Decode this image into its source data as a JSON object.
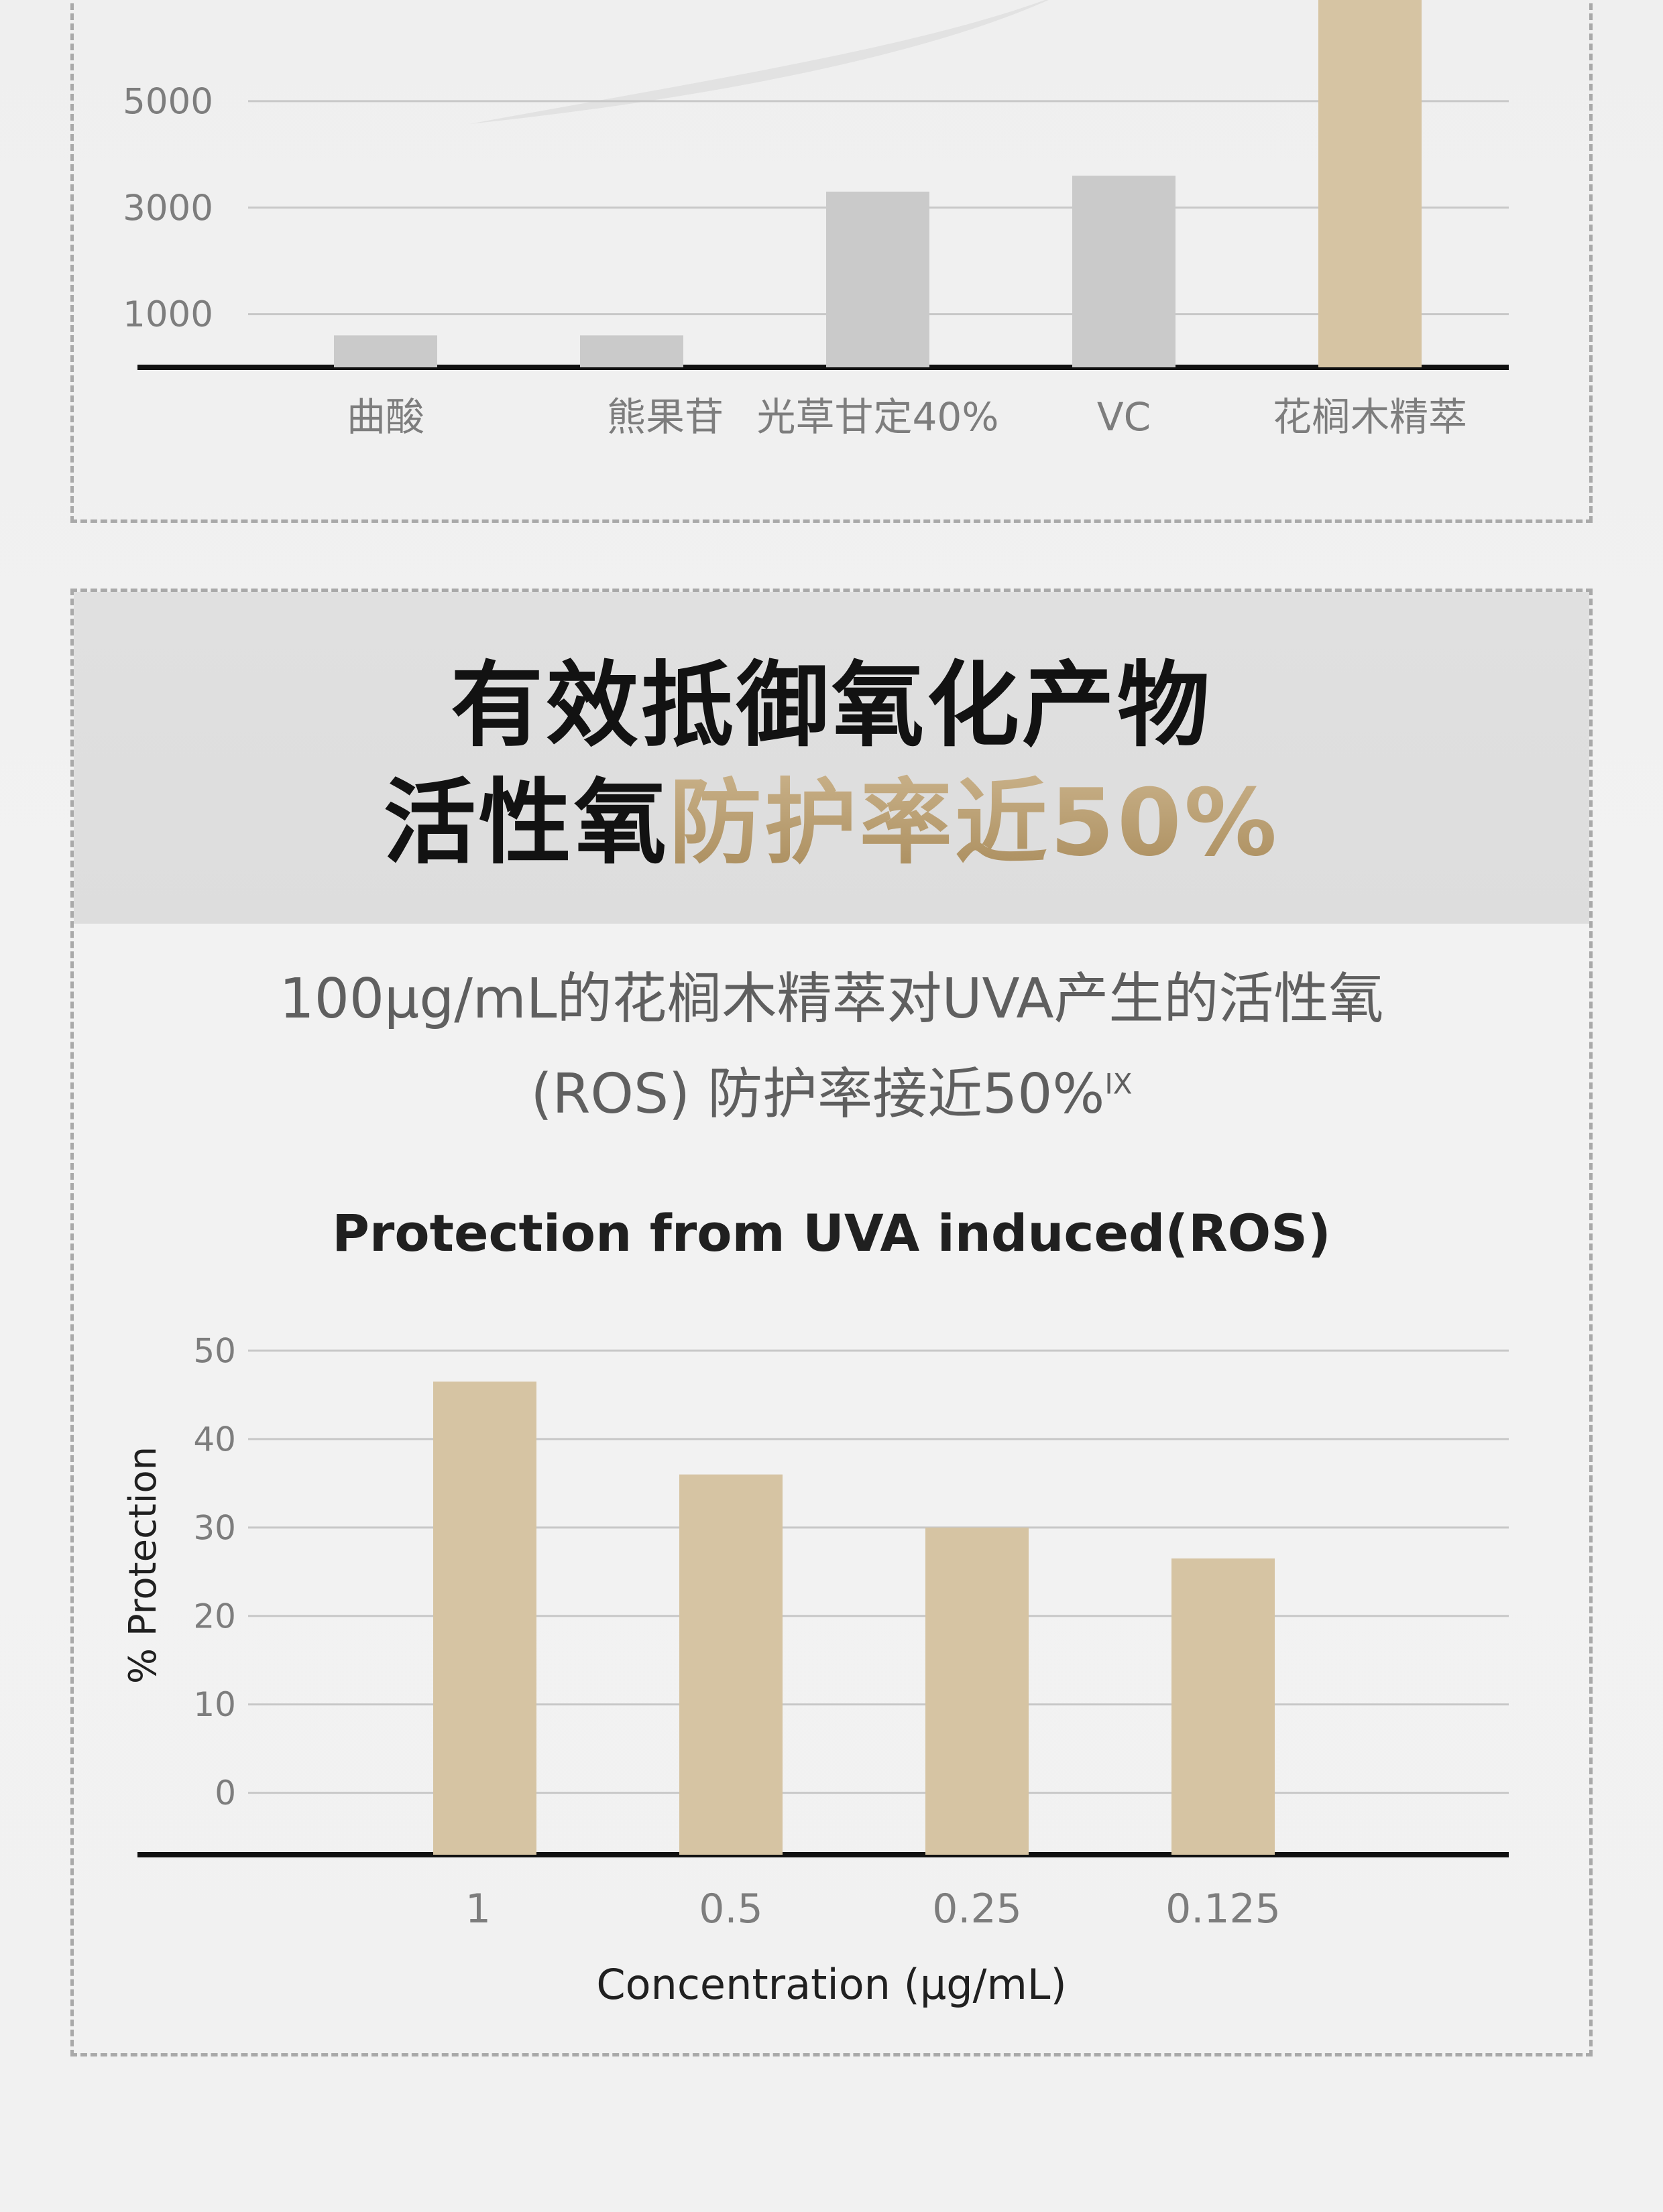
{
  "top_section": {},
  "bottom_section": {
    "headline_line_1": "有效抵御氧化产物",
    "headline_line_2_dark": "活性氧",
    "headline_line_2_gold": "防护率近50%",
    "subtext_line_1": "100μg/mL的花榈木精萃对UVA产生的活性氧",
    "subtext_line_2": "(ROS) 防护率接近50%",
    "subtext_superscript": "IX"
  },
  "chart_data": [
    {
      "type": "bar",
      "title": "",
      "xlabel": "",
      "ylabel": "",
      "categories": [
        "曲酸",
        "熊果苷",
        "光草甘定40%",
        "VC",
        "花榈木精萃"
      ],
      "values": [
        600,
        600,
        3300,
        3600,
        7000
      ],
      "colors": [
        "#cacaca",
        "#cacaca",
        "#cacaca",
        "#cacaca",
        "#d6c4a3"
      ],
      "yticks": [
        1000,
        3000,
        5000
      ],
      "ylim": [
        0,
        7000
      ],
      "grid": true,
      "legend": "none"
    },
    {
      "type": "bar",
      "title": "Protection from UVA induced(ROS)",
      "xlabel": "Concentration  (μg/mL)",
      "ylabel": "% Protection",
      "categories": [
        "1",
        "0.5",
        "0.25",
        "0.125"
      ],
      "values": [
        46.5,
        36,
        30,
        26.5
      ],
      "colors": [
        "#d6c4a3",
        "#d6c4a3",
        "#d6c4a3",
        "#d6c4a3"
      ],
      "yticks": [
        0,
        10,
        20,
        30,
        40,
        50
      ],
      "ylim": [
        -7,
        50
      ],
      "grid": true,
      "legend": "none"
    }
  ]
}
